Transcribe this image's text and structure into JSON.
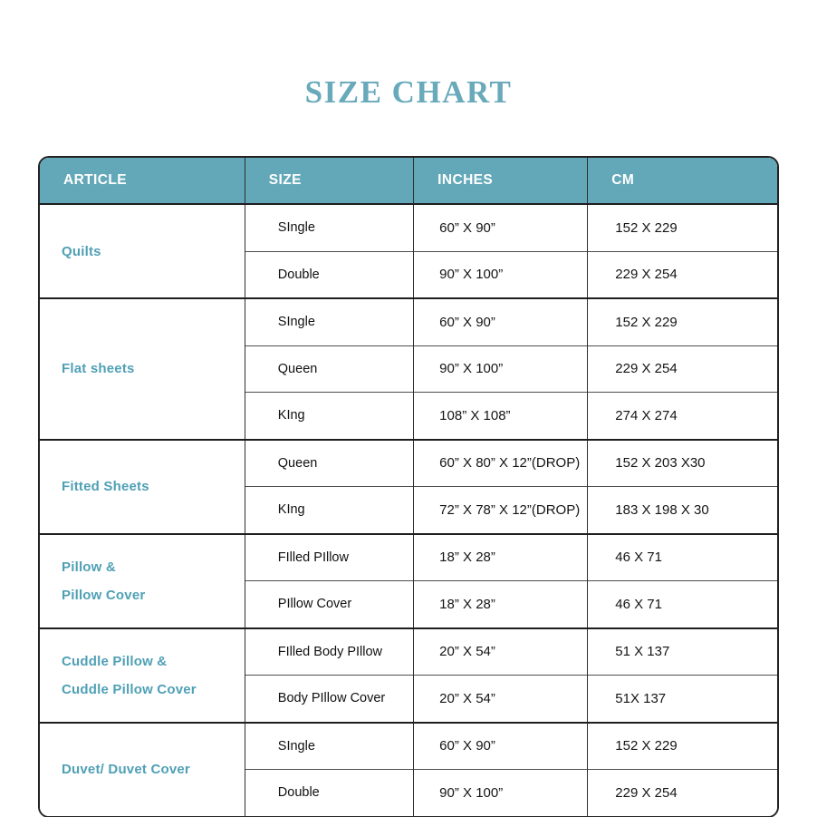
{
  "title": {
    "text": "SIZE CHART",
    "color": "#68a9ba"
  },
  "table": {
    "accent_color": "#63a8b8",
    "article_text_color": "#4fa0b5",
    "border_color": "#232323",
    "columns": [
      "ARTICLE",
      "SIZE",
      "INCHES",
      "CM"
    ],
    "groups": [
      {
        "article_lines": [
          "Quilts"
        ],
        "rows": [
          {
            "size": "SIngle",
            "inches": "60” X 90”",
            "cm": "152 X 229"
          },
          {
            "size": "Double",
            "inches": "90” X 100”",
            "cm": "229 X 254"
          }
        ]
      },
      {
        "article_lines": [
          "Flat sheets"
        ],
        "rows": [
          {
            "size": "SIngle",
            "inches": "60” X 90”",
            "cm": "152 X 229"
          },
          {
            "size": "Queen",
            "inches": "90” X 100”",
            "cm": "229 X 254"
          },
          {
            "size": "KIng",
            "inches": "108” X 108”",
            "cm": "274 X 274"
          }
        ]
      },
      {
        "article_lines": [
          "Fitted Sheets"
        ],
        "rows": [
          {
            "size": "Queen",
            "inches": "60” X 80” X 12”(DROP)",
            "cm": "152 X 203 X30"
          },
          {
            "size": "KIng",
            "inches": "72” X 78” X 12”(DROP)",
            "cm": "183 X 198 X 30"
          }
        ]
      },
      {
        "article_lines": [
          "Pillow &",
          "Pillow Cover"
        ],
        "rows": [
          {
            "size": "FIlled PIllow",
            "inches": "18” X 28”",
            "cm": "46 X 71"
          },
          {
            "size": "PIllow Cover",
            "inches": "18” X 28”",
            "cm": "46 X 71"
          }
        ]
      },
      {
        "article_lines": [
          "Cuddle Pillow &",
          "Cuddle Pillow Cover"
        ],
        "rows": [
          {
            "size": "FIlled Body PIllow",
            "inches": "20” X 54”",
            "cm": "51 X 137"
          },
          {
            "size": "Body PIllow Cover",
            "inches": "20” X 54”",
            "cm": "51X 137"
          }
        ]
      },
      {
        "article_lines": [
          "Duvet/ Duvet Cover"
        ],
        "rows": [
          {
            "size": "SIngle",
            "inches": "60” X 90”",
            "cm": "152 X 229"
          },
          {
            "size": "Double",
            "inches": "90” X 100”",
            "cm": "229 X 254"
          }
        ]
      }
    ]
  },
  "chart_data": {
    "type": "table",
    "title": "SIZE CHART",
    "columns": [
      "ARTICLE",
      "SIZE",
      "INCHES",
      "CM"
    ],
    "rows": [
      [
        "Quilts",
        "SIngle",
        "60” X 90”",
        "152 X 229"
      ],
      [
        "Quilts",
        "Double",
        "90” X 100”",
        "229 X 254"
      ],
      [
        "Flat sheets",
        "SIngle",
        "60” X 90”",
        "152 X 229"
      ],
      [
        "Flat sheets",
        "Queen",
        "90” X 100”",
        "229 X 254"
      ],
      [
        "Flat sheets",
        "KIng",
        "108” X 108”",
        "274 X 274"
      ],
      [
        "Fitted Sheets",
        "Queen",
        "60” X 80” X 12”(DROP)",
        "152 X 203 X30"
      ],
      [
        "Fitted Sheets",
        "KIng",
        "72” X 78” X 12”(DROP)",
        "183 X 198 X 30"
      ],
      [
        "Pillow & Pillow Cover",
        "FIlled PIllow",
        "18” X 28”",
        "46 X 71"
      ],
      [
        "Pillow & Pillow Cover",
        "PIllow Cover",
        "18” X 28”",
        "46 X 71"
      ],
      [
        "Cuddle Pillow & Cuddle Pillow Cover",
        "FIlled Body PIllow",
        "20” X 54”",
        "51 X 137"
      ],
      [
        "Cuddle Pillow & Cuddle Pillow Cover",
        "Body PIllow Cover",
        "20” X 54”",
        "51X 137"
      ],
      [
        "Duvet/ Duvet Cover",
        "SIngle",
        "60” X 90”",
        "152 X 229"
      ],
      [
        "Duvet/ Duvet Cover",
        "Double",
        "90” X 100”",
        "229 X 254"
      ]
    ]
  }
}
